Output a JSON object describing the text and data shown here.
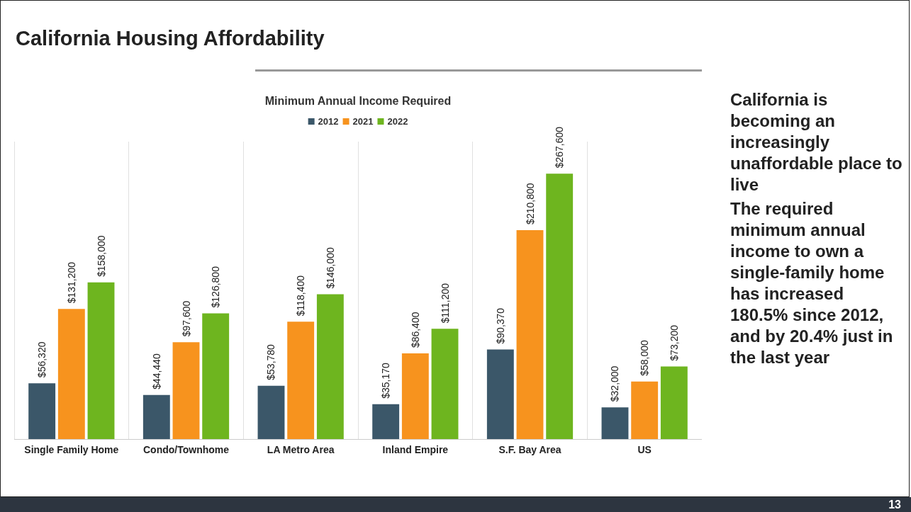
{
  "chart_data": {
    "type": "bar",
    "title": "California Housing Affordability",
    "subtitle": "Minimum Annual Income Required",
    "categories": [
      "Single Family Home",
      "Condo/Townhome",
      "LA Metro Area",
      "Inland Empire",
      "S.F. Bay Area",
      "US"
    ],
    "series": [
      {
        "name": "2012",
        "color": "#3b5769",
        "values": [
          56320,
          44440,
          53780,
          35170,
          90370,
          32000
        ],
        "value_labels": [
          "$56,320",
          "$44,440",
          "$53,780",
          "$35,170",
          "$90,370",
          "$32,000"
        ]
      },
      {
        "name": "2021",
        "color": "#f7931e",
        "values": [
          131200,
          97600,
          118400,
          86400,
          210800,
          58000
        ],
        "value_labels": [
          "$131,200",
          "$97,600",
          "$118,400",
          "$86,400",
          "$210,800",
          "$58,000"
        ]
      },
      {
        "name": "2022",
        "color": "#6eb51f",
        "values": [
          158000,
          126800,
          146000,
          111200,
          267600,
          73200
        ],
        "value_labels": [
          "$158,000",
          "$126,800",
          "$146,000",
          "$111,200",
          "$267,600",
          "$73,200"
        ]
      }
    ],
    "legend": "top",
    "grid": "x",
    "annotations": [
      "California is becoming an increasingly unaffordable place to live",
      "The required minimum annual income to own a single-family home has increased 180.5% since 2012, and by 20.4% just in the last year",
      "13"
    ]
  }
}
